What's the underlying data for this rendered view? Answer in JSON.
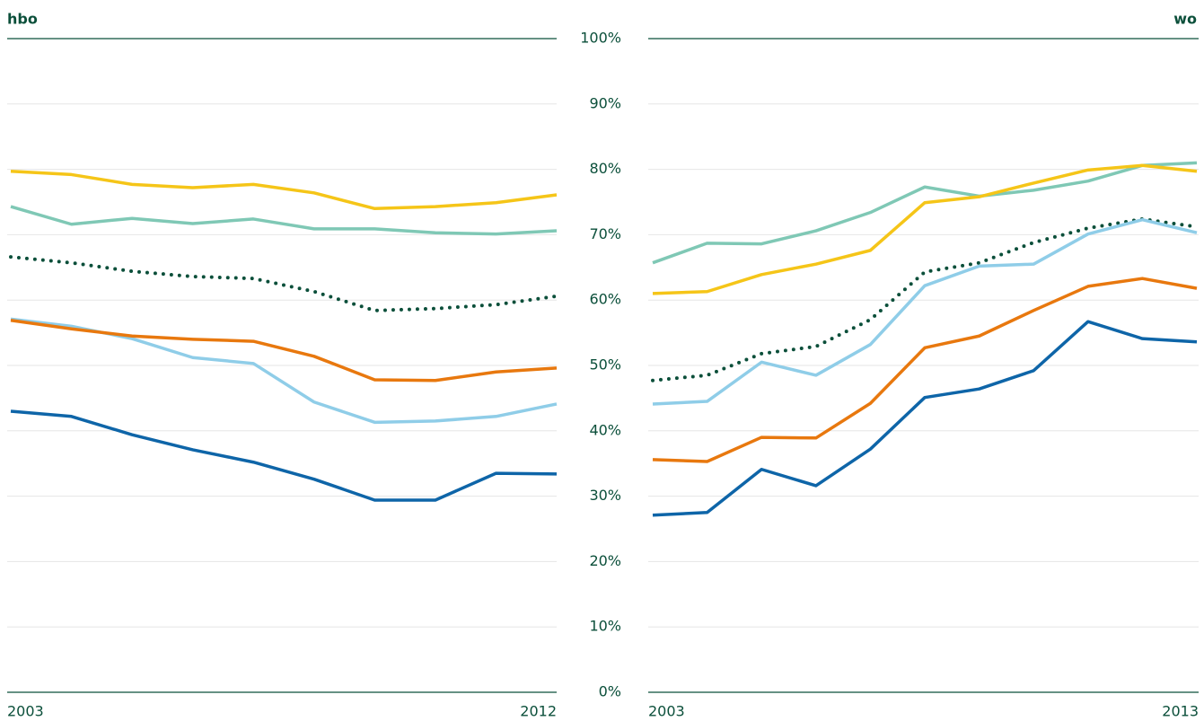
{
  "chart_data": [
    {
      "type": "line",
      "title": "hbo",
      "x": [
        2003,
        2004,
        2005,
        2006,
        2007,
        2008,
        2009,
        2010,
        2011,
        2012
      ],
      "xlim": [
        2003,
        2012
      ],
      "xticks": [
        2003,
        2012
      ],
      "ylim": [
        0,
        100
      ],
      "yticks": [
        {
          "value": 0,
          "label": "0%"
        },
        {
          "value": 10,
          "label": "10%"
        },
        {
          "value": 20,
          "label": "20%"
        },
        {
          "value": 30,
          "label": "30%"
        },
        {
          "value": 40,
          "label": "40%"
        },
        {
          "value": 50,
          "label": "50%"
        },
        {
          "value": 60,
          "label": "60%"
        },
        {
          "value": 70,
          "label": "70%"
        },
        {
          "value": 80,
          "label": "80%"
        },
        {
          "value": 90,
          "label": "90%"
        },
        {
          "value": 100,
          "label": "100%"
        }
      ],
      "grid": true,
      "series": [
        {
          "color": "#f5c518",
          "values": [
            79.7,
            79.2,
            77.7,
            77.2,
            77.7,
            76.4,
            74.0,
            74.3,
            74.9,
            76.1
          ]
        },
        {
          "color": "#7fc8b5",
          "values": [
            74.3,
            71.6,
            72.5,
            71.7,
            72.4,
            70.9,
            70.9,
            70.3,
            70.1,
            70.6
          ]
        },
        {
          "color": "#0b4f3a",
          "dotted": true,
          "values": [
            66.6,
            65.7,
            64.4,
            63.6,
            63.3,
            61.3,
            58.4,
            58.7,
            59.3,
            60.6
          ]
        },
        {
          "color": "#8fcde8",
          "values": [
            57.1,
            56.0,
            54.1,
            51.2,
            50.3,
            44.4,
            41.3,
            41.5,
            42.2,
            44.1
          ]
        },
        {
          "color": "#e8780e",
          "values": [
            56.9,
            55.6,
            54.5,
            54.0,
            53.7,
            51.4,
            47.8,
            47.7,
            49.0,
            49.6
          ]
        },
        {
          "color": "#0e65a8",
          "values": [
            43.0,
            42.2,
            39.4,
            37.1,
            35.2,
            32.6,
            29.4,
            29.4,
            33.5,
            33.4
          ]
        }
      ]
    },
    {
      "type": "line",
      "title": "wo",
      "x": [
        2003,
        2004,
        2005,
        2006,
        2007,
        2008,
        2009,
        2010,
        2011,
        2012,
        2013
      ],
      "xlim": [
        2003,
        2013
      ],
      "xticks": [
        2003,
        2013
      ],
      "ylim": [
        0,
        100
      ],
      "grid": true,
      "series": [
        {
          "color": "#7fc8b5",
          "values": [
            65.7,
            68.7,
            68.6,
            70.6,
            73.4,
            77.3,
            75.9,
            76.8,
            78.2,
            80.6,
            81.0
          ]
        },
        {
          "color": "#f5c518",
          "values": [
            61.0,
            61.3,
            63.9,
            65.5,
            67.6,
            74.9,
            75.8,
            77.9,
            79.9,
            80.6,
            79.7
          ]
        },
        {
          "color": "#0b4f3a",
          "dotted": true,
          "values": [
            47.7,
            48.5,
            51.8,
            52.9,
            57.0,
            64.3,
            65.7,
            68.8,
            71.0,
            72.4,
            71.2
          ]
        },
        {
          "color": "#8fcde8",
          "values": [
            44.1,
            44.5,
            50.5,
            48.5,
            53.2,
            62.2,
            65.2,
            65.5,
            70.1,
            72.3,
            70.3
          ]
        },
        {
          "color": "#e8780e",
          "values": [
            35.6,
            35.3,
            39.0,
            38.9,
            44.2,
            52.7,
            54.5,
            58.4,
            62.1,
            63.3,
            61.8
          ]
        },
        {
          "color": "#0e65a8",
          "values": [
            27.1,
            27.5,
            34.1,
            31.6,
            37.2,
            45.1,
            46.4,
            49.2,
            56.7,
            54.1,
            53.6
          ]
        }
      ]
    }
  ]
}
